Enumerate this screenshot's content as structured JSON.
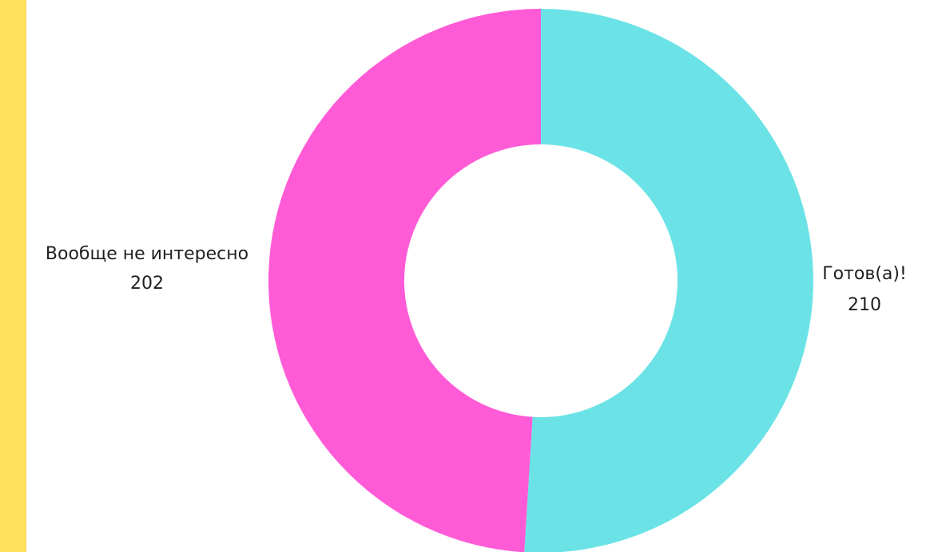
{
  "chart_data": {
    "type": "pie",
    "style": "donut",
    "title": "",
    "slices": [
      {
        "label": "Готов(а)!",
        "value": 210,
        "value_label": "210",
        "color": "#6BE3E6"
      },
      {
        "label": "Вообще не интересно",
        "value": 202,
        "value_label": "202",
        "color": "#FF5BD6"
      }
    ],
    "start_angle_deg": 0,
    "direction": "clockwise",
    "legend": "none"
  },
  "decor": {
    "accent_color": "#FFE05C"
  }
}
